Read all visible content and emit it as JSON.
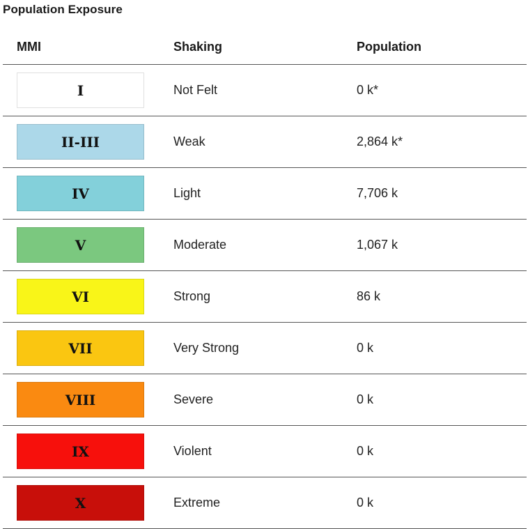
{
  "title": "Population Exposure",
  "headers": {
    "mmi": "MMI",
    "shaking": "Shaking",
    "population": "Population"
  },
  "rows": [
    {
      "mmi": "I",
      "shaking": "Not Felt",
      "population": "0 k*",
      "color": "#ffffff"
    },
    {
      "mmi": "II-III",
      "shaking": "Weak",
      "population": "2,864 k*",
      "color": "#acd8e9"
    },
    {
      "mmi": "IV",
      "shaking": "Light",
      "population": "7,706 k",
      "color": "#83d0da"
    },
    {
      "mmi": "V",
      "shaking": "Moderate",
      "population": "1,067 k",
      "color": "#7bc87f"
    },
    {
      "mmi": "VI",
      "shaking": "Strong",
      "population": "86 k",
      "color": "#f9f518"
    },
    {
      "mmi": "VII",
      "shaking": "Very Strong",
      "population": "0 k",
      "color": "#fac611"
    },
    {
      "mmi": "VIII",
      "shaking": "Severe",
      "population": "0 k",
      "color": "#fa8a11"
    },
    {
      "mmi": "IX",
      "shaking": "Violent",
      "population": "0 k",
      "color": "#f7100c"
    },
    {
      "mmi": "X",
      "shaking": "Extreme",
      "population": "0 k",
      "color": "#c80f0a"
    }
  ]
}
